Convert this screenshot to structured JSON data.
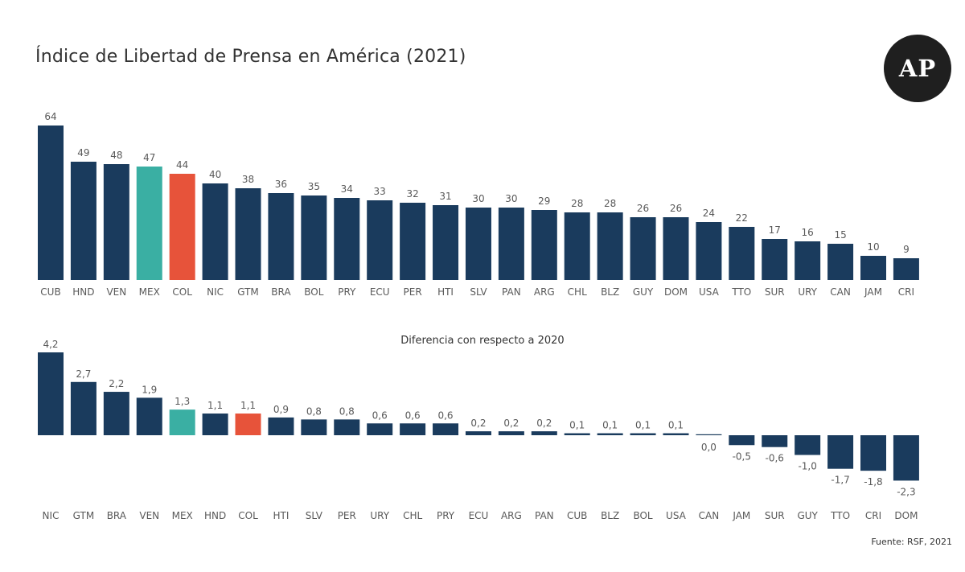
{
  "title": "Índice de Libertad de Prensa en América (2021)",
  "logo_text": "AP",
  "subtitle": "Diferencia con respecto a 2020",
  "source": "Fuente: RSF, 2021",
  "colors": {
    "bar": "#1a3b5d",
    "highlight_mex": "#3aafa3",
    "highlight_col": "#e7533a",
    "label": "#595959"
  },
  "chart_data": [
    {
      "type": "bar",
      "title": "Índice de Libertad de Prensa en América (2021)",
      "categories": [
        "CUB",
        "HND",
        "VEN",
        "MEX",
        "COL",
        "NIC",
        "GTM",
        "BRA",
        "BOL",
        "PRY",
        "ECU",
        "PER",
        "HTI",
        "SLV",
        "PAN",
        "ARG",
        "CHL",
        "BLZ",
        "GUY",
        "DOM",
        "USA",
        "TTO",
        "SUR",
        "URY",
        "CAN",
        "JAM",
        "CRI"
      ],
      "values": [
        64,
        49,
        48,
        47,
        44,
        40,
        38,
        36,
        35,
        34,
        33,
        32,
        31,
        30,
        30,
        29,
        28,
        28,
        26,
        26,
        24,
        22,
        17,
        16,
        15,
        10,
        9
      ],
      "labels": [
        "64",
        "49",
        "48",
        "47",
        "44",
        "40",
        "38",
        "36",
        "35",
        "34",
        "33",
        "32",
        "31",
        "30",
        "30",
        "29",
        "28",
        "28",
        "26",
        "26",
        "24",
        "22",
        "17",
        "16",
        "15",
        "10",
        "9"
      ],
      "highlights": {
        "MEX": "#3aafa3",
        "COL": "#e7533a"
      },
      "ylim": [
        0,
        64
      ],
      "grid": false
    },
    {
      "type": "bar",
      "title": "Diferencia con respecto a 2020",
      "categories": [
        "NIC",
        "GTM",
        "BRA",
        "VEN",
        "MEX",
        "HND",
        "COL",
        "HTI",
        "SLV",
        "PER",
        "URY",
        "CHL",
        "PRY",
        "ECU",
        "ARG",
        "PAN",
        "CUB",
        "BLZ",
        "BOL",
        "USA",
        "CAN",
        "JAM",
        "SUR",
        "GUY",
        "TTO",
        "CRI",
        "DOM"
      ],
      "values": [
        4.2,
        2.7,
        2.2,
        1.9,
        1.3,
        1.1,
        1.1,
        0.9,
        0.8,
        0.8,
        0.6,
        0.6,
        0.6,
        0.2,
        0.2,
        0.2,
        0.1,
        0.1,
        0.1,
        0.1,
        0.0,
        -0.5,
        -0.6,
        -1.0,
        -1.7,
        -1.8,
        -2.3
      ],
      "labels": [
        "4,2",
        "2,7",
        "2,2",
        "1,9",
        "1,3",
        "1,1",
        "1,1",
        "0,9",
        "0,8",
        "0,8",
        "0,6",
        "0,6",
        "0,6",
        "0,2",
        "0,2",
        "0,2",
        "0,1",
        "0,1",
        "0,1",
        "0,1",
        "0,0",
        "-0,5",
        "-0,6",
        "-1,0",
        "-1,7",
        "-1,8",
        "-2,3"
      ],
      "highlights": {
        "MEX": "#3aafa3",
        "COL": "#e7533a"
      },
      "ylim": [
        -2.3,
        4.2
      ],
      "grid": false
    }
  ]
}
